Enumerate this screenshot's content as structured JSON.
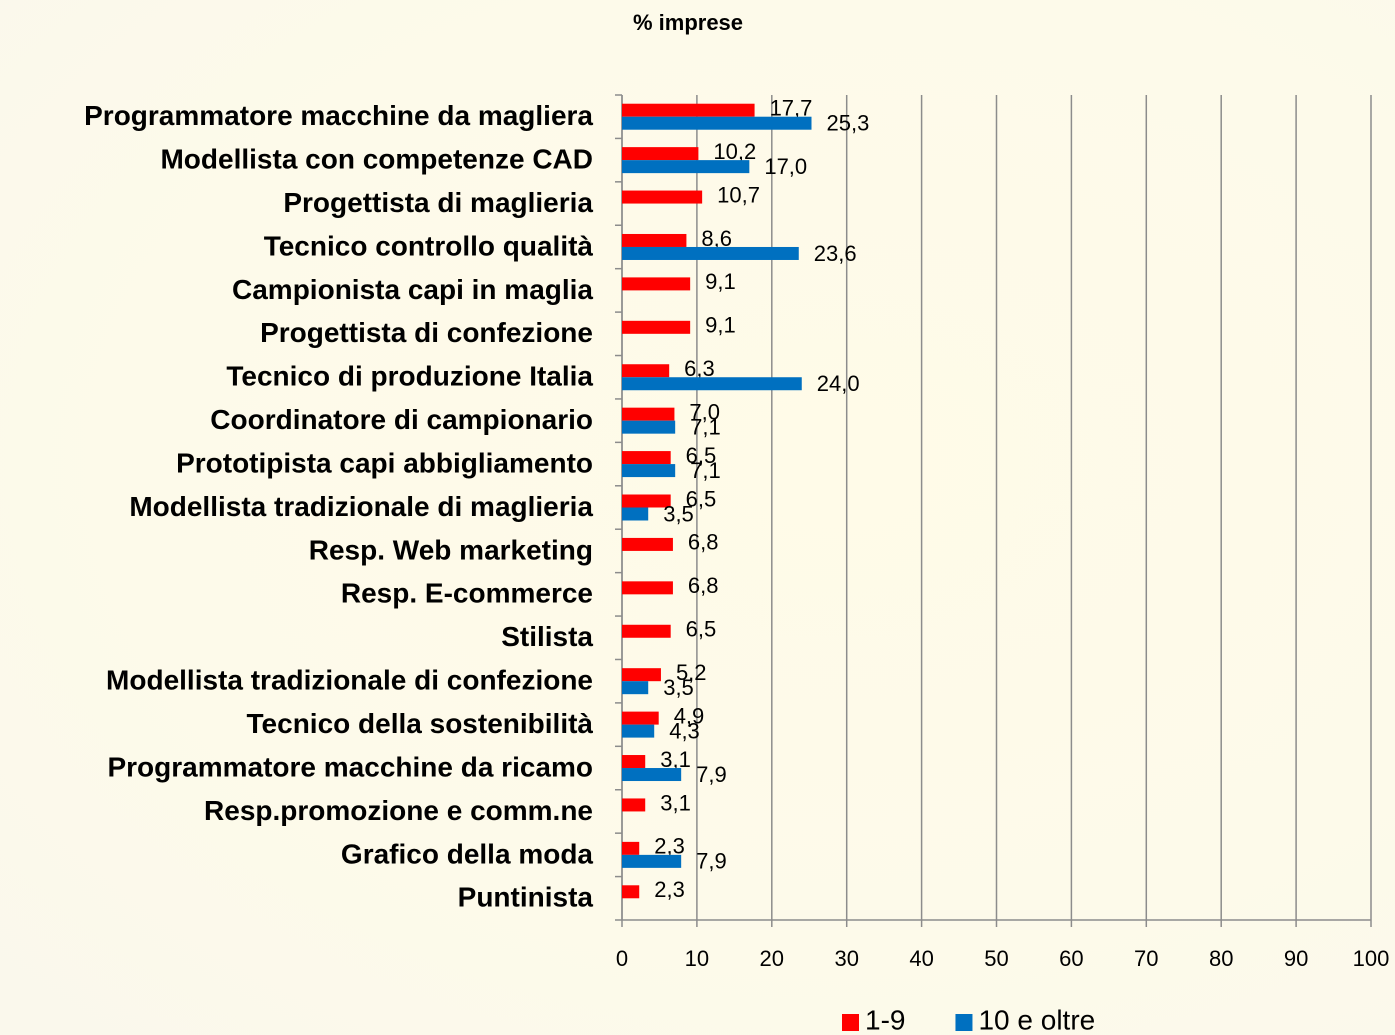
{
  "chart_data": {
    "type": "barh",
    "title": "% imprese",
    "categories": [
      "Programmatore macchine da magliera",
      "Modellista con competenze CAD",
      "Progettista di maglieria",
      "Tecnico controllo qualità",
      "Campionista capi in maglia",
      "Progettista di confezione",
      "Tecnico di produzione Italia",
      "Coordinatore di campionario",
      "Prototipista capi abbigliamento",
      "Modellista tradizionale di maglieria",
      "Resp. Web marketing",
      "Resp. E-commerce",
      "Stilista",
      "Modellista tradizionale di confezione",
      "Tecnico della sostenibilità",
      "Programmatore macchine da ricamo",
      "Resp.promozione e comm.ne",
      "Grafico della moda",
      "Puntinista"
    ],
    "series": [
      {
        "name": "1-9",
        "color": "#ff0000",
        "values": [
          17.7,
          10.2,
          10.7,
          8.6,
          9.1,
          9.1,
          6.3,
          7.0,
          6.5,
          6.5,
          6.8,
          6.8,
          6.5,
          5.2,
          4.9,
          3.1,
          3.1,
          2.3,
          2.3
        ],
        "value_labels": [
          "17,7",
          "10,2",
          "10,7",
          "8,6",
          "9,1",
          "9,1",
          "6,3",
          "7,0",
          "6,5",
          "6,5",
          "6,8",
          "6,8",
          "6,5",
          "5,2",
          "4,9",
          "3,1",
          "3,1",
          "2,3",
          "2,3"
        ]
      },
      {
        "name": "10 e oltre",
        "color": "#0070c0",
        "values": [
          25.3,
          17.0,
          null,
          23.6,
          null,
          null,
          24.0,
          7.1,
          7.1,
          3.5,
          null,
          null,
          null,
          3.5,
          4.3,
          7.9,
          null,
          7.9,
          null
        ],
        "value_labels": [
          "25,3",
          "17,0",
          null,
          "23,6",
          null,
          null,
          "24,0",
          "7,1",
          "7,1",
          "3,5",
          null,
          null,
          null,
          "3,5",
          "4,3",
          "7,9",
          null,
          "7,9",
          null
        ]
      }
    ],
    "xlim": [
      0,
      100
    ],
    "xticks": [
      0,
      10,
      20,
      30,
      40,
      50,
      60,
      70,
      80,
      90,
      100
    ],
    "grid": true,
    "legend": "bottom"
  }
}
